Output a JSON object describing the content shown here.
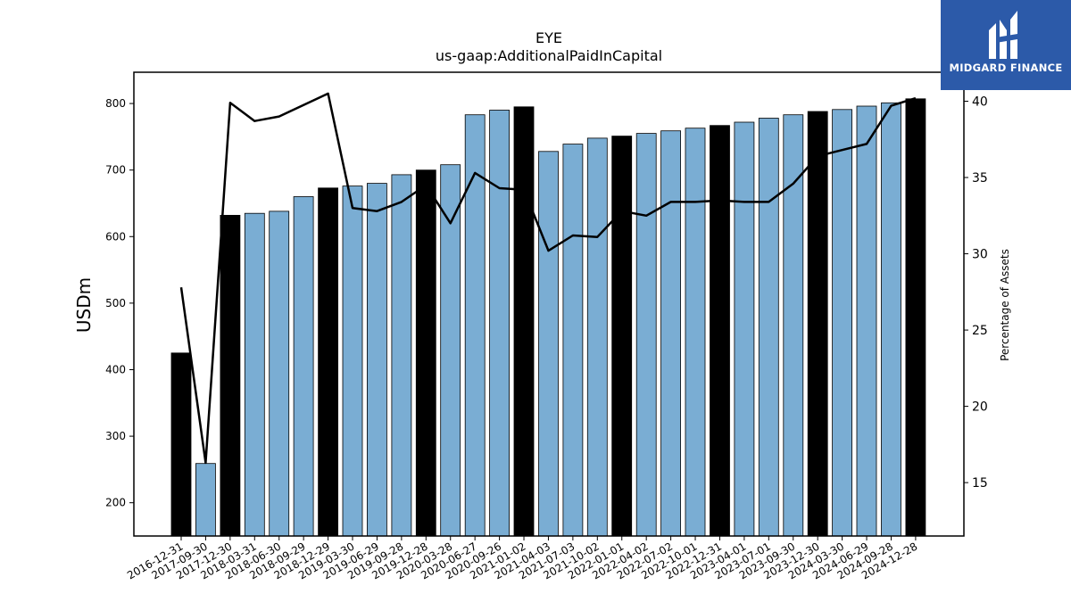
{
  "brand": {
    "name": "MIDGARD FINANCE",
    "bg_color": "#2c5aa9",
    "icon": "midgard-logo-icon"
  },
  "chart_data": {
    "type": "bar",
    "title": "EYE",
    "subtitle": "us-gaap:AdditionalPaidInCapital",
    "ylabel": "USDm",
    "y2label": "Percentage of Assets",
    "ylim": [
      150,
      847
    ],
    "y2lim": [
      11.5,
      41.9
    ],
    "yticks": [
      200,
      300,
      400,
      500,
      600,
      700,
      800
    ],
    "y2ticks": [
      15,
      20,
      25,
      30,
      35,
      40
    ],
    "grid": false,
    "colors": {
      "bar_regular": "#7aadd3",
      "bar_highlight": "#000000",
      "line": "#000000"
    },
    "categories": [
      "2016-12-31",
      "2017-09-30",
      "2017-12-30",
      "2018-03-31",
      "2018-06-30",
      "2018-09-29",
      "2018-12-29",
      "2019-03-30",
      "2019-06-29",
      "2019-09-28",
      "2019-12-28",
      "2020-03-28",
      "2020-06-27",
      "2020-09-26",
      "2021-01-02",
      "2021-04-03",
      "2021-07-03",
      "2021-10-02",
      "2022-01-01",
      "2022-04-02",
      "2022-07-02",
      "2022-10-01",
      "2022-12-31",
      "2023-04-01",
      "2023-07-01",
      "2023-09-30",
      "2023-12-30",
      "2024-03-30",
      "2024-06-29",
      "2024-09-28",
      "2024-12-28"
    ],
    "highlight": [
      true,
      false,
      true,
      false,
      false,
      false,
      true,
      false,
      false,
      false,
      true,
      false,
      false,
      false,
      true,
      false,
      false,
      false,
      true,
      false,
      false,
      false,
      true,
      false,
      false,
      false,
      true,
      false,
      false,
      false,
      true
    ],
    "series": [
      {
        "type": "bar",
        "axis": "left",
        "values": [
          425,
          259,
          632,
          635,
          638,
          660,
          673,
          676,
          680,
          693,
          700,
          708,
          783,
          790,
          795,
          728,
          739,
          748,
          751,
          755,
          759,
          763,
          767,
          772,
          778,
          783,
          788,
          791,
          796,
          801,
          807
        ]
      },
      {
        "type": "line",
        "axis": "right",
        "values": [
          27.8,
          16.3,
          39.9,
          38.7,
          39.0,
          null,
          40.5,
          33.0,
          32.8,
          33.4,
          34.5,
          32.0,
          35.3,
          34.3,
          34.2,
          30.2,
          31.2,
          31.1,
          32.8,
          32.5,
          33.4,
          33.4,
          33.5,
          33.4,
          33.4,
          34.6,
          36.4,
          36.8,
          37.2,
          39.7,
          40.2
        ]
      }
    ]
  }
}
